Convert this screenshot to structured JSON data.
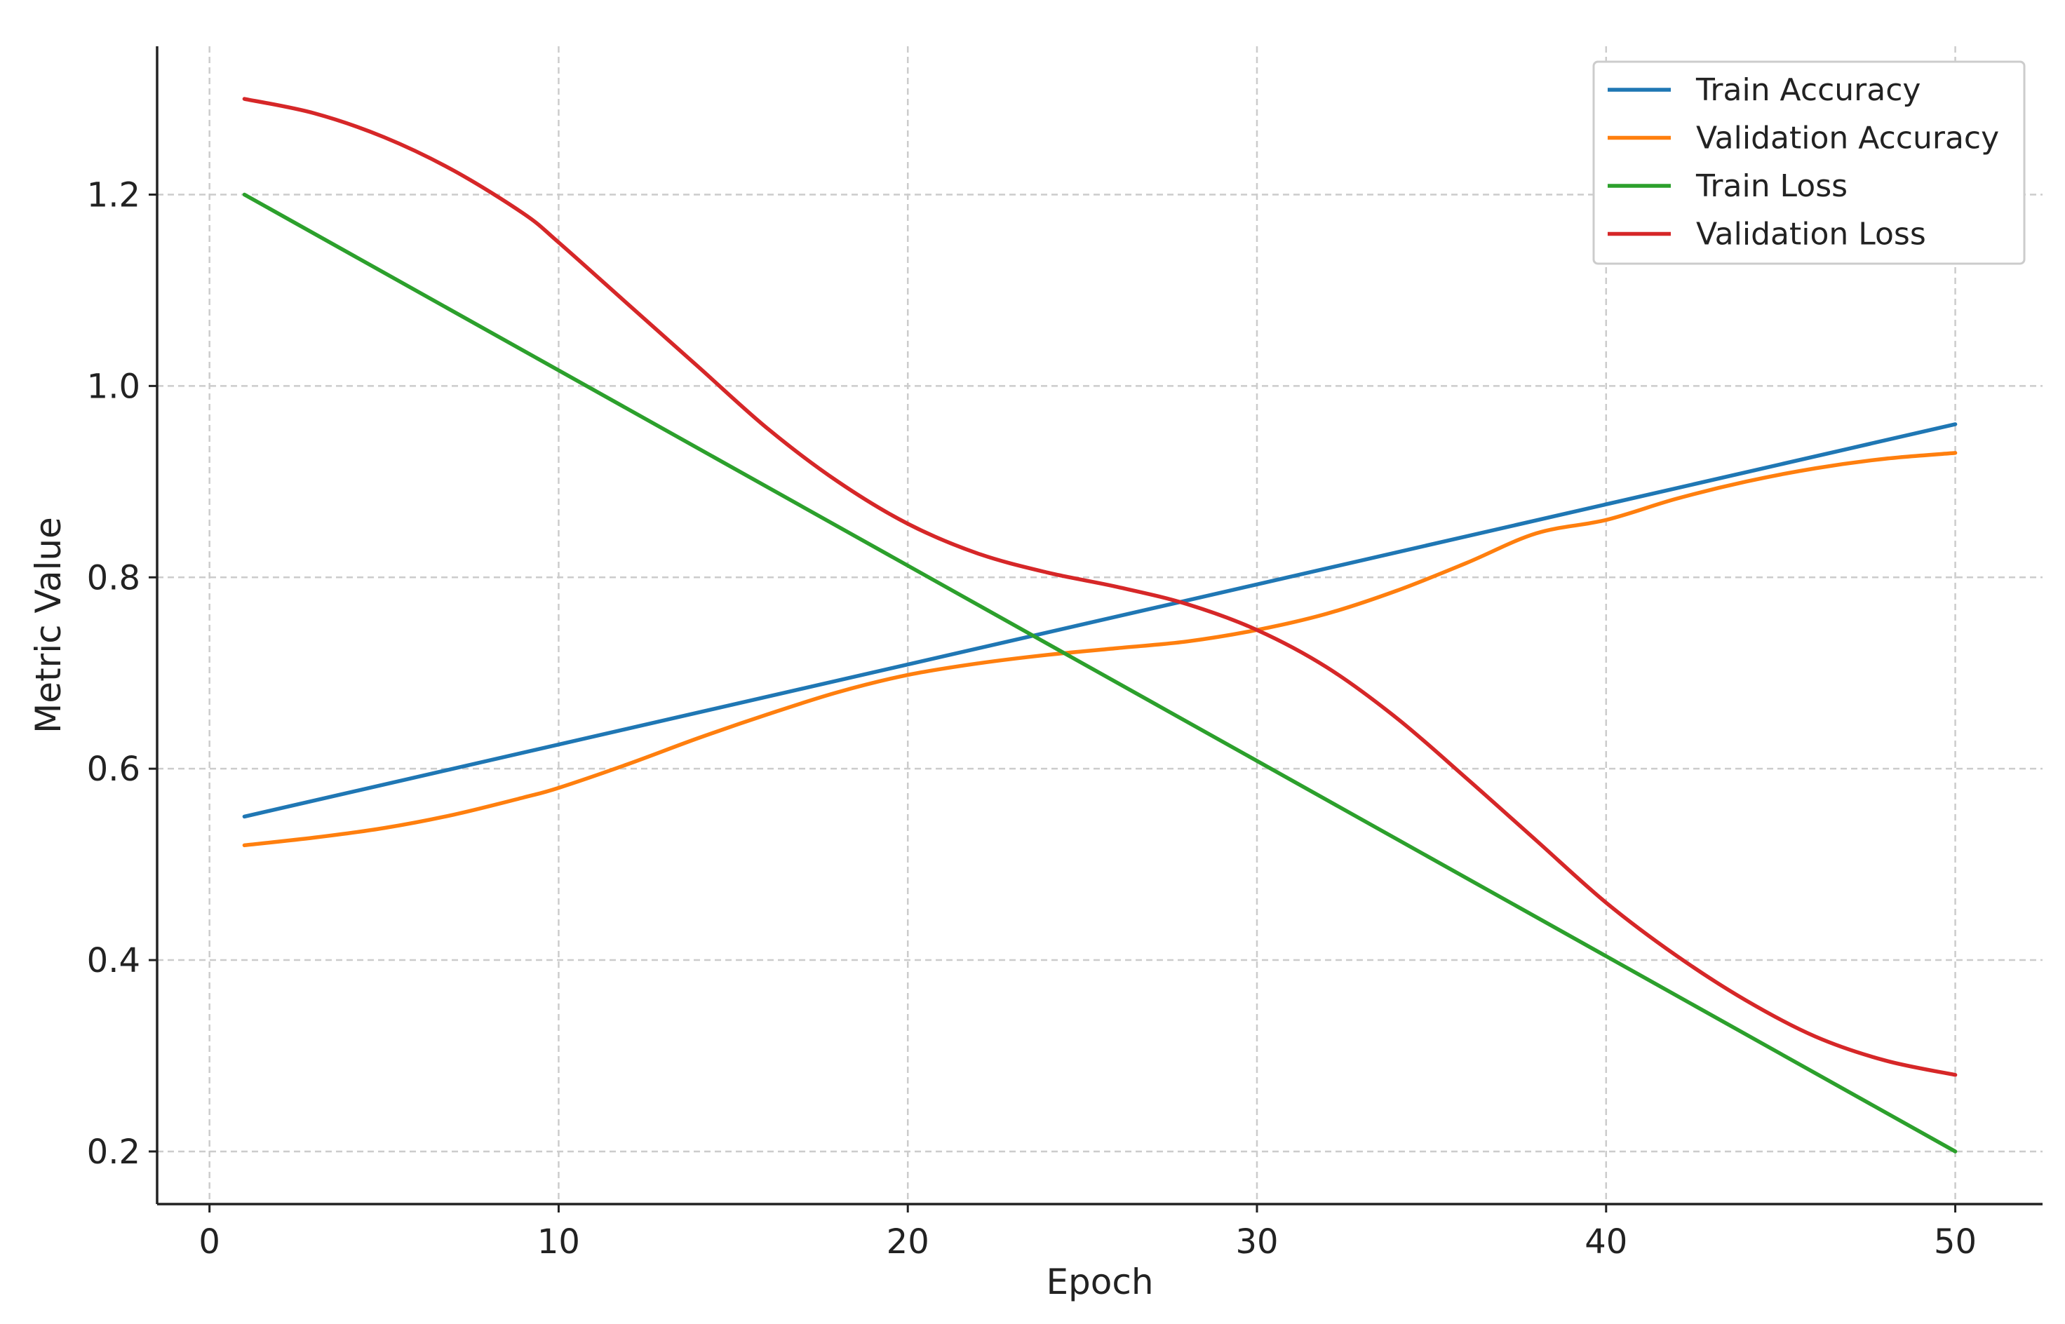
{
  "chart_data": {
    "type": "line",
    "title": "",
    "xlabel": "Epoch",
    "ylabel": "Metric Value",
    "xlim": [
      -1.5,
      52.5
    ],
    "ylim": [
      0.145,
      1.355
    ],
    "xticks": [
      0,
      10,
      20,
      30,
      40,
      50
    ],
    "yticks": [
      0.2,
      0.4,
      0.6,
      0.8,
      1.0,
      1.2
    ],
    "xtick_labels": [
      "0",
      "10",
      "20",
      "30",
      "40",
      "50"
    ],
    "ytick_labels": [
      "0.2",
      "0.4",
      "0.6",
      "0.8",
      "1.0",
      "1.2"
    ],
    "grid": true,
    "legend_position": "top-right",
    "series": [
      {
        "name": "Train Accuracy",
        "color": "#1f77b4",
        "points": [
          [
            1,
            0.55
          ],
          [
            50,
            0.96
          ]
        ]
      },
      {
        "name": "Validation Accuracy",
        "color": "#ff7f0e",
        "points": [
          [
            1,
            0.52
          ],
          [
            3,
            0.528
          ],
          [
            5,
            0.538
          ],
          [
            7,
            0.552
          ],
          [
            9,
            0.57
          ],
          [
            10,
            0.58
          ],
          [
            12,
            0.605
          ],
          [
            14,
            0.632
          ],
          [
            16,
            0.657
          ],
          [
            18,
            0.68
          ],
          [
            20,
            0.698
          ],
          [
            22,
            0.71
          ],
          [
            24,
            0.719
          ],
          [
            26,
            0.726
          ],
          [
            28,
            0.733
          ],
          [
            30,
            0.745
          ],
          [
            32,
            0.762
          ],
          [
            34,
            0.786
          ],
          [
            36,
            0.815
          ],
          [
            38,
            0.846
          ],
          [
            40,
            0.86
          ],
          [
            42,
            0.882
          ],
          [
            44,
            0.9
          ],
          [
            46,
            0.914
          ],
          [
            48,
            0.924
          ],
          [
            50,
            0.93
          ]
        ]
      },
      {
        "name": "Train Loss",
        "color": "#2ca02c",
        "points": [
          [
            1,
            1.2
          ],
          [
            50,
            0.2
          ]
        ]
      },
      {
        "name": "Validation Loss",
        "color": "#d62728",
        "points": [
          [
            1,
            1.3
          ],
          [
            3,
            1.285
          ],
          [
            5,
            1.26
          ],
          [
            7,
            1.225
          ],
          [
            9,
            1.18
          ],
          [
            10,
            1.15
          ],
          [
            12,
            1.085
          ],
          [
            14,
            1.02
          ],
          [
            16,
            0.955
          ],
          [
            18,
            0.9
          ],
          [
            20,
            0.856
          ],
          [
            22,
            0.825
          ],
          [
            24,
            0.805
          ],
          [
            26,
            0.79
          ],
          [
            28,
            0.772
          ],
          [
            30,
            0.745
          ],
          [
            32,
            0.706
          ],
          [
            34,
            0.653
          ],
          [
            36,
            0.59
          ],
          [
            38,
            0.525
          ],
          [
            40,
            0.46
          ],
          [
            42,
            0.405
          ],
          [
            44,
            0.358
          ],
          [
            46,
            0.32
          ],
          [
            48,
            0.295
          ],
          [
            50,
            0.28
          ]
        ]
      }
    ]
  }
}
